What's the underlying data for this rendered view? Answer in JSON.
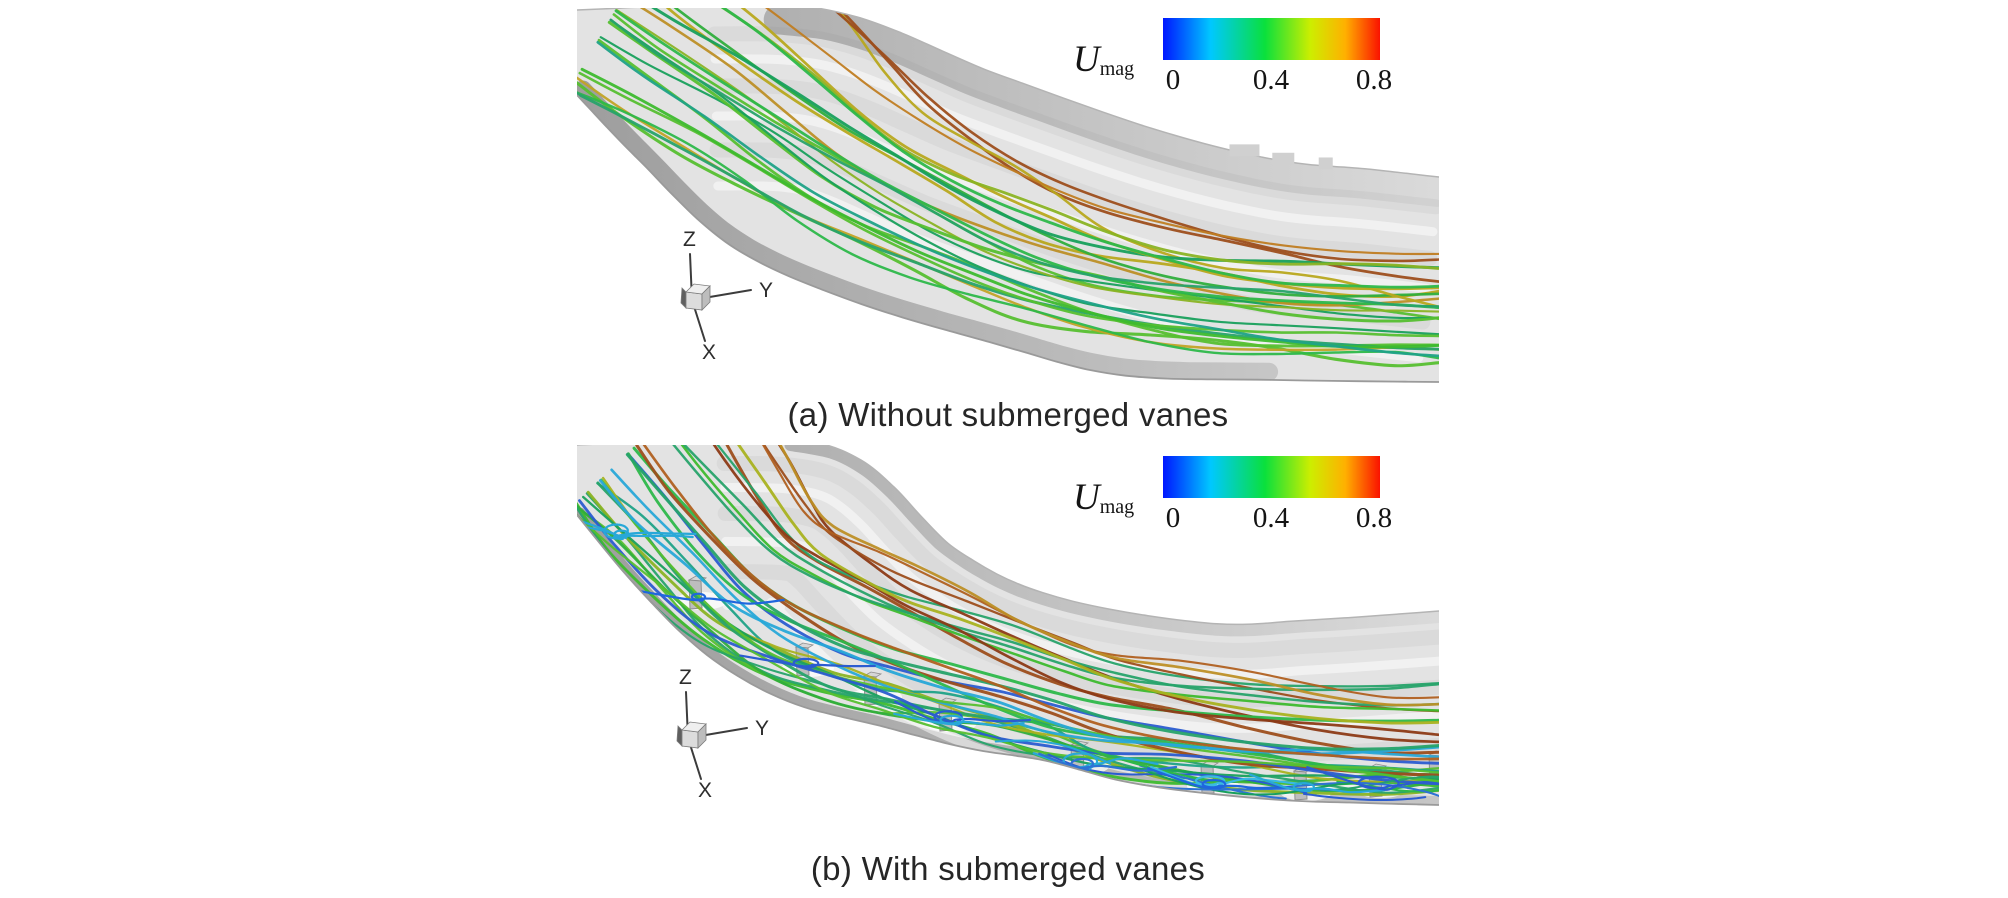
{
  "figure": {
    "background": "#ffffff",
    "panels": [
      {
        "caption": "(a) Without submerged vanes",
        "colorbar": {
          "label_main": "U",
          "label_sub": "mag",
          "ticks": [
            "0",
            "0.4",
            "0.8"
          ]
        },
        "triad": {
          "up": "Z",
          "right": "Y",
          "down": "X"
        }
      },
      {
        "caption": "(b) With submerged vanes",
        "colorbar": {
          "label_main": "U",
          "label_sub": "mag",
          "ticks": [
            "0",
            "0.4",
            "0.8"
          ]
        },
        "triad": {
          "up": "Z",
          "right": "Y",
          "down": "X"
        }
      }
    ],
    "colormap": {
      "stops": [
        "#0016ff",
        "#00c8ff",
        "#0ae03c",
        "#cdee00",
        "#ffb000",
        "#fa1200"
      ],
      "positions": [
        0,
        0.22,
        0.47,
        0.68,
        0.84,
        1
      ],
      "tick_values": [
        0,
        0.4,
        0.8
      ]
    },
    "palette": {
      "warm": [
        "#b06020",
        "#9d4e1c",
        "#8c3a16",
        "#c07d22",
        "#bd8f26"
      ],
      "mid": [
        "#a9b220",
        "#b8a81e",
        "#8ab324",
        "#c2a326"
      ],
      "cool": [
        "#27a36a",
        "#2fae3c",
        "#3dbb2e",
        "#1fa287",
        "#56bf30",
        "#18a05c",
        "#2db84a"
      ],
      "blue": [
        "#2b5cd0",
        "#2e72d4",
        "#28a8d8",
        "#39b9e2",
        "#1f66dd"
      ]
    },
    "surface": {
      "base": "#e3e3e3",
      "band_dark": "#b0b0b0",
      "band_light": "#dadada",
      "inner_dark": "#9e9e9e",
      "inner_light": "#c6c6c6",
      "edge_outer": "#b4b4b4",
      "edge_inner": "#9a9a9a",
      "vane_face": "#bdbdbd",
      "vane_top": "#d6d6d6",
      "vane_edge": "#8e8e8e",
      "notch": "#d0d0d0"
    },
    "seeds": {
      "a": 11,
      "b": 23
    }
  }
}
